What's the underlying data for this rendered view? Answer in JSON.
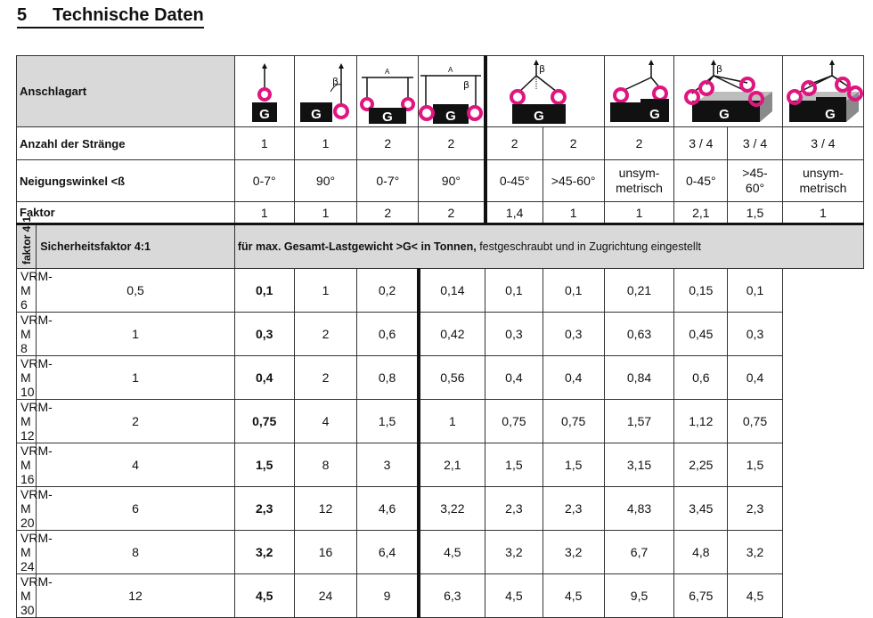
{
  "heading": {
    "number": "5",
    "text": "Technische Daten"
  },
  "rows": {
    "anschlagart": "Anschlagart",
    "straenge_label": "Anzahl der Stränge",
    "neigung_label": "Neigungswinkel <ß",
    "faktor_label": "Faktor"
  },
  "icons": [
    "G",
    "G",
    "G",
    "G",
    "G",
    "G",
    "G",
    "G"
  ],
  "icon_marks": {
    "beta": "β",
    "a": "A"
  },
  "straenge": [
    "1",
    "1",
    "2",
    "2",
    "2",
    "2",
    "2",
    "3 / 4",
    "3 / 4",
    "3 / 4"
  ],
  "neigung": [
    "0-7°",
    "90°",
    "0-7°",
    "90°",
    "0-45°",
    ">45-60°",
    "unsym-\nmetrisch",
    "0-45°",
    ">45-\n60°",
    "unsym-\nmetrisch"
  ],
  "faktor": [
    "1",
    "1",
    "2",
    "2",
    "1,4",
    "1",
    "1",
    "2,1",
    "1,5",
    "1"
  ],
  "band": {
    "sicherheit": "Sicherheitsfaktor 4:1",
    "note_bold": "für max. Gesamt-Lastgewicht >G< in Tonnen,",
    "note_rest": " festgeschraubt und in Zugrichtung eingestellt"
  },
  "side_label": "faktor 4:1",
  "table": [
    {
      "model": "VRM-M 6",
      "v": [
        "0,5",
        "0,1",
        "1",
        "0,2",
        "0,14",
        "0,1",
        "0,1",
        "0,21",
        "0,15",
        "0,1"
      ]
    },
    {
      "model": "VRM-M 8",
      "v": [
        "1",
        "0,3",
        "2",
        "0,6",
        "0,42",
        "0,3",
        "0,3",
        "0,63",
        "0,45",
        "0,3"
      ]
    },
    {
      "model": "VRM-M 10",
      "v": [
        "1",
        "0,4",
        "2",
        "0,8",
        "0,56",
        "0,4",
        "0,4",
        "0,84",
        "0,6",
        "0,4"
      ]
    },
    {
      "model": "VRM-M 12",
      "v": [
        "2",
        "0,75",
        "4",
        "1,5",
        "1",
        "0,75",
        "0,75",
        "1,57",
        "1,12",
        "0,75"
      ]
    },
    {
      "model": "VRM-M 16",
      "v": [
        "4",
        "1,5",
        "8",
        "3",
        "2,1",
        "1,5",
        "1,5",
        "3,15",
        "2,25",
        "1,5"
      ]
    },
    {
      "model": "VRM-M 20",
      "v": [
        "6",
        "2,3",
        "12",
        "4,6",
        "3,22",
        "2,3",
        "2,3",
        "4,83",
        "3,45",
        "2,3"
      ]
    },
    {
      "model": "VRM-M 24",
      "v": [
        "8",
        "3,2",
        "16",
        "6,4",
        "4,5",
        "3,2",
        "3,2",
        "6,7",
        "4,8",
        "3,2"
      ]
    },
    {
      "model": "VRM-M 30",
      "v": [
        "12",
        "4,5",
        "24",
        "9",
        "6,3",
        "4,5",
        "4,5",
        "9,5",
        "6,75",
        "4,5"
      ]
    }
  ],
  "colors": {
    "ring": "#e0157f",
    "block": "#111111",
    "band": "#d9d9d9"
  }
}
